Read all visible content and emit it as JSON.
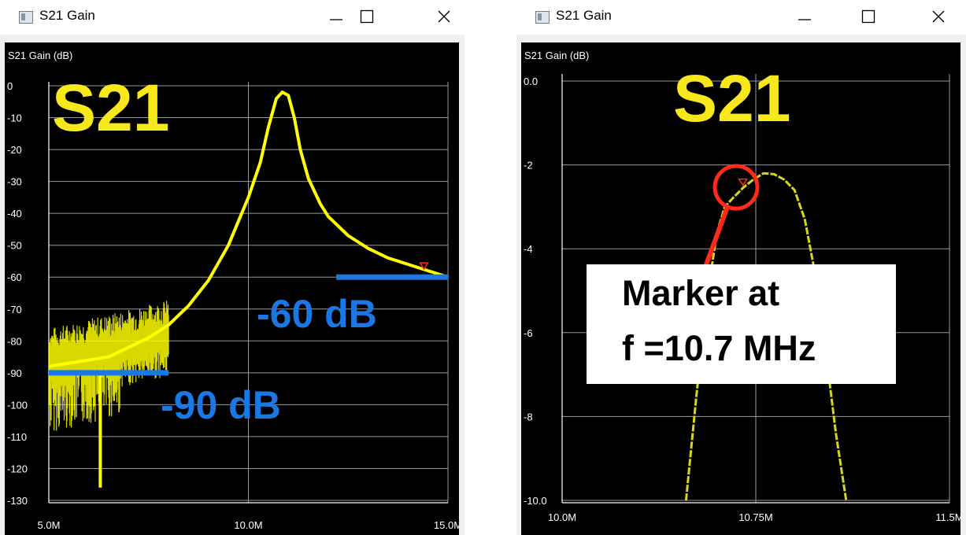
{
  "windows": [
    {
      "title": "S21 Gain",
      "y_axis_title": "S21 Gain (dB)",
      "big_label": "S21",
      "x_ticks": [
        "5.0M",
        "10.0M",
        "15.0M"
      ],
      "y_ticks": [
        "0",
        "-10",
        "-20",
        "-30",
        "-40",
        "-50",
        "-60",
        "-70",
        "-80",
        "-90",
        "-100",
        "-110",
        "-120",
        "-130"
      ],
      "annotations": [
        "-60 dB",
        "-90 dB"
      ]
    },
    {
      "title": "S21 Gain",
      "y_axis_title": "S21 Gain (dB)",
      "big_label": "S21",
      "x_ticks": [
        "10.0M",
        "10.75M",
        "11.5M"
      ],
      "y_ticks": [
        "0.0",
        "-2",
        "-4",
        "-6",
        "-8",
        "-10.0"
      ],
      "callout": [
        "Marker at",
        "f =10.7 MHz"
      ]
    }
  ],
  "colors": {
    "trace": "#ffff00",
    "annotation": "#1a78e6",
    "marker": "#ff2a1a",
    "grid": "#9a9a9a",
    "background": "#000000",
    "big_label": "#f7e81c"
  },
  "chart_data": [
    {
      "type": "line",
      "title": "S21 Gain",
      "ylabel": "S21 Gain (dB)",
      "xlabel": "",
      "x_unit": "MHz",
      "xlim": [
        5.0,
        15.0
      ],
      "ylim": [
        -132,
        3
      ],
      "grid": true,
      "series": [
        {
          "x": [
            5.0,
            5.5,
            6.0,
            6.5,
            7.0,
            7.5,
            8.0,
            8.5,
            9.0,
            9.5,
            10.0,
            10.3,
            10.5,
            10.7,
            10.85,
            11.0,
            11.15,
            11.3,
            11.5,
            11.8,
            12.0,
            12.5,
            13.0,
            13.5,
            14.0,
            14.5,
            15.0
          ],
          "y": [
            -88,
            -87,
            -86,
            -85,
            -82,
            -79,
            -75,
            -69,
            -61,
            -50,
            -35,
            -24,
            -13,
            -4,
            -2,
            -3,
            -10,
            -20,
            -29,
            -37,
            -41,
            -47,
            -51,
            -54,
            -56,
            -58,
            -60
          ]
        }
      ],
      "noise_region_x": [
        5.0,
        8.0
      ],
      "marker": {
        "x": 14.4,
        "y": -57
      },
      "reference_lines": [
        {
          "y": -60,
          "x": [
            12.2,
            15.0
          ],
          "label": "-60 dB"
        },
        {
          "y": -90,
          "x": [
            5.0,
            8.0
          ],
          "label": "-90 dB"
        }
      ]
    },
    {
      "type": "line",
      "title": "S21 Gain",
      "ylabel": "S21 Gain (dB)",
      "xlabel": "",
      "x_unit": "MHz",
      "xlim": [
        10.0,
        11.5
      ],
      "ylim": [
        -10.0,
        0.0
      ],
      "grid": true,
      "series": [
        {
          "x": [
            10.48,
            10.52,
            10.56,
            10.6,
            10.63,
            10.66,
            10.7,
            10.74,
            10.78,
            10.82,
            10.86,
            10.9,
            10.94,
            10.98,
            11.02,
            11.06,
            11.1
          ],
          "y": [
            -10.0,
            -7.5,
            -5.2,
            -3.6,
            -3.0,
            -2.8,
            -2.55,
            -2.35,
            -2.2,
            -2.22,
            -2.35,
            -2.6,
            -3.3,
            -4.6,
            -6.4,
            -8.4,
            -10.0
          ]
        }
      ],
      "marker": {
        "x": 10.7,
        "y": -2.45
      }
    }
  ]
}
